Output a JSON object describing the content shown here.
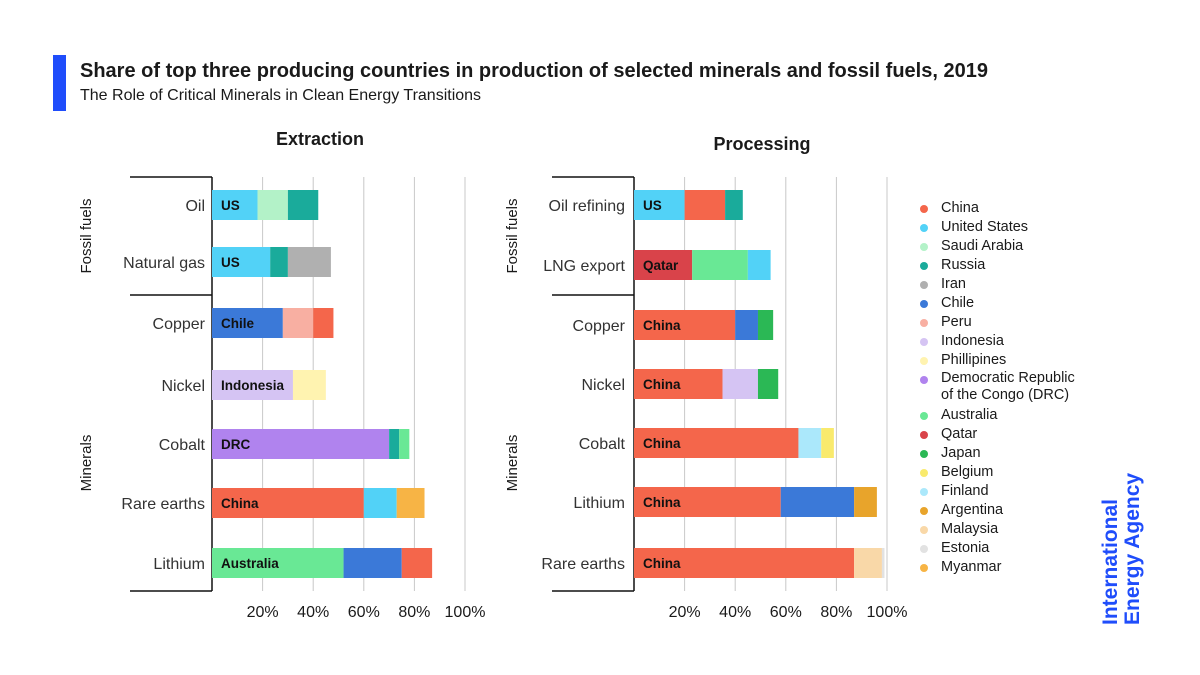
{
  "header": {
    "title": "Share of top three producing countries in production of selected minerals and fossil fuels, 2019",
    "subtitle": "The Role of Critical Minerals in Clean Energy Transitions"
  },
  "logo": {
    "line1": "International",
    "line2": "Energy Agency"
  },
  "colors": {
    "China": "#f4664b",
    "United States": "#52d2f7",
    "Saudi Arabia": "#b3f2c8",
    "Russia": "#1aab9b",
    "Iran": "#b0b0b0",
    "Chile": "#3b79d8",
    "Peru": "#f8afa2",
    "Indonesia": "#d5c4f3",
    "Phillipines": "#fff3b0",
    "DRC": "#b083ee",
    "Australia": "#69e895",
    "Qatar": "#d9434a",
    "Japan": "#2bb855",
    "Belgium": "#f9ea6d",
    "Finland": "#abe8fb",
    "Argentina": "#e8a42b",
    "Malaysia": "#f9d8a8",
    "Estonia": "#e2e2e2",
    "Myanmar": "#f7b445"
  },
  "legend": [
    {
      "label": "China",
      "key": "China"
    },
    {
      "label": "United States",
      "key": "United States"
    },
    {
      "label": "Saudi Arabia",
      "key": "Saudi Arabia"
    },
    {
      "label": "Russia",
      "key": "Russia"
    },
    {
      "label": "Iran",
      "key": "Iran"
    },
    {
      "label": "Chile",
      "key": "Chile"
    },
    {
      "label": "Peru",
      "key": "Peru"
    },
    {
      "label": "Indonesia",
      "key": "Indonesia"
    },
    {
      "label": "Phillipines",
      "key": "Phillipines"
    },
    {
      "label": "Democratic Republic\nof the Congo (DRC)",
      "key": "DRC"
    },
    {
      "label": "Australia",
      "key": "Australia"
    },
    {
      "label": "Qatar",
      "key": "Qatar"
    },
    {
      "label": "Japan",
      "key": "Japan"
    },
    {
      "label": "Belgium",
      "key": "Belgium"
    },
    {
      "label": "Finland",
      "key": "Finland"
    },
    {
      "label": "Argentina",
      "key": "Argentina"
    },
    {
      "label": "Malaysia",
      "key": "Malaysia"
    },
    {
      "label": "Estonia",
      "key": "Estonia"
    },
    {
      "label": "Myanmar",
      "key": "Myanmar"
    }
  ],
  "chart_data": [
    {
      "type": "bar",
      "orientation": "horizontal",
      "stacked": true,
      "title": "Extraction",
      "xlim": [
        0,
        100
      ],
      "x_ticks": [
        "20%",
        "40%",
        "60%",
        "80%",
        "100%"
      ],
      "groups": [
        {
          "label": "Fossil fuels",
          "rows": [
            0,
            1
          ]
        },
        {
          "label": "Minerals",
          "rows": [
            2,
            3,
            4,
            5,
            6
          ]
        }
      ],
      "rows": [
        {
          "category": "Oil",
          "bar_label": "US",
          "segments": [
            {
              "country": "United States",
              "value": 18
            },
            {
              "country": "Saudi Arabia",
              "value": 12
            },
            {
              "country": "Russia",
              "value": 12
            }
          ]
        },
        {
          "category": "Natural gas",
          "bar_label": "US",
          "segments": [
            {
              "country": "United States",
              "value": 23
            },
            {
              "country": "Russia",
              "value": 7
            },
            {
              "country": "Iran",
              "value": 17
            }
          ]
        },
        {
          "category": "Copper",
          "bar_label": "Chile",
          "segments": [
            {
              "country": "Chile",
              "value": 28
            },
            {
              "country": "Peru",
              "value": 12
            },
            {
              "country": "China",
              "value": 8
            }
          ]
        },
        {
          "category": "Nickel",
          "bar_label": "Indonesia",
          "segments": [
            {
              "country": "Indonesia",
              "value": 32
            },
            {
              "country": "Phillipines",
              "value": 13
            }
          ]
        },
        {
          "category": "Cobalt",
          "bar_label": "DRC",
          "segments": [
            {
              "country": "DRC",
              "value": 70
            },
            {
              "country": "Russia",
              "value": 4
            },
            {
              "country": "Australia",
              "value": 4
            }
          ]
        },
        {
          "category": "Rare earths",
          "bar_label": "China",
          "segments": [
            {
              "country": "China",
              "value": 60
            },
            {
              "country": "United States",
              "value": 13
            },
            {
              "country": "Myanmar",
              "value": 11
            }
          ]
        },
        {
          "category": "Lithium",
          "bar_label": "Australia",
          "segments": [
            {
              "country": "Australia",
              "value": 52
            },
            {
              "country": "Chile",
              "value": 23
            },
            {
              "country": "China",
              "value": 12
            }
          ]
        }
      ]
    },
    {
      "type": "bar",
      "orientation": "horizontal",
      "stacked": true,
      "title": "Processing",
      "xlim": [
        0,
        100
      ],
      "x_ticks": [
        "20%",
        "40%",
        "60%",
        "80%",
        "100%"
      ],
      "groups": [
        {
          "label": "Fossil fuels",
          "rows": [
            0,
            1
          ]
        },
        {
          "label": "Minerals",
          "rows": [
            2,
            3,
            4,
            5,
            6
          ]
        }
      ],
      "rows": [
        {
          "category": "Oil refining",
          "bar_label": "US",
          "segments": [
            {
              "country": "United States",
              "value": 20
            },
            {
              "country": "China",
              "value": 16
            },
            {
              "country": "Russia",
              "value": 7
            }
          ]
        },
        {
          "category": "LNG export",
          "bar_label": "Qatar",
          "segments": [
            {
              "country": "Qatar",
              "value": 23
            },
            {
              "country": "Australia",
              "value": 22
            },
            {
              "country": "United States",
              "value": 9
            }
          ]
        },
        {
          "category": "Copper",
          "bar_label": "China",
          "segments": [
            {
              "country": "China",
              "value": 40
            },
            {
              "country": "Chile",
              "value": 9
            },
            {
              "country": "Japan",
              "value": 6
            }
          ]
        },
        {
          "category": "Nickel",
          "bar_label": "China",
          "segments": [
            {
              "country": "China",
              "value": 35
            },
            {
              "country": "Indonesia",
              "value": 14
            },
            {
              "country": "Japan",
              "value": 8
            }
          ]
        },
        {
          "category": "Cobalt",
          "bar_label": "China",
          "segments": [
            {
              "country": "China",
              "value": 65
            },
            {
              "country": "Finland",
              "value": 9
            },
            {
              "country": "Belgium",
              "value": 5
            }
          ]
        },
        {
          "category": "Lithium",
          "bar_label": "China",
          "segments": [
            {
              "country": "China",
              "value": 58
            },
            {
              "country": "Chile",
              "value": 29
            },
            {
              "country": "Argentina",
              "value": 9
            }
          ]
        },
        {
          "category": "Rare earths",
          "bar_label": "China",
          "segments": [
            {
              "country": "China",
              "value": 87
            },
            {
              "country": "Malaysia",
              "value": 11
            },
            {
              "country": "Estonia",
              "value": 1
            }
          ]
        }
      ]
    }
  ]
}
